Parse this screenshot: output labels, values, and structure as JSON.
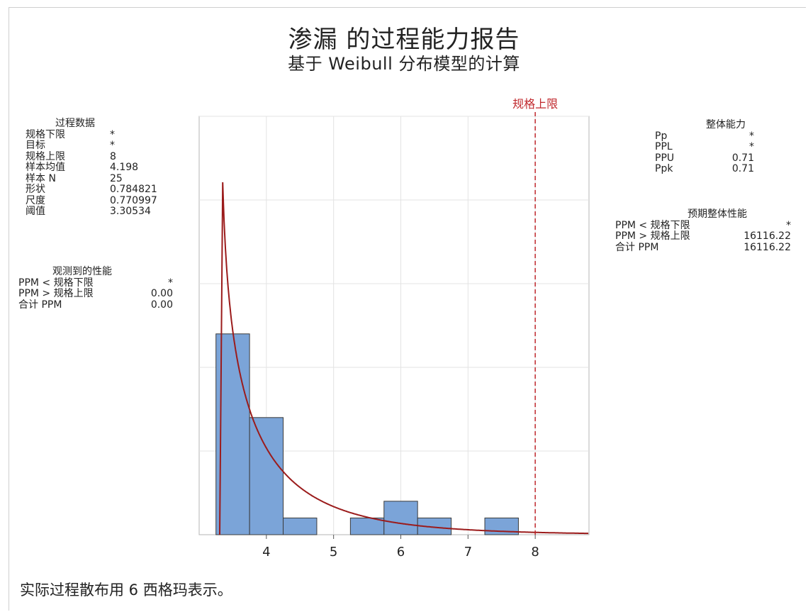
{
  "title": "渗漏 的过程能力报告",
  "subtitle": "基于 Weibull 分布模型的计算",
  "process_data": {
    "header": "过程数据",
    "rows": [
      {
        "label": "规格下限",
        "value": "*"
      },
      {
        "label": "目标",
        "value": "*"
      },
      {
        "label": "规格上限",
        "value": "8"
      },
      {
        "label": "样本均值",
        "value": "4.198"
      },
      {
        "label": "样本 N",
        "value": "25"
      },
      {
        "label": "形状",
        "value": "0.784821"
      },
      {
        "label": "尺度",
        "value": "0.770997"
      },
      {
        "label": "阈值",
        "value": "3.30534"
      }
    ]
  },
  "observed": {
    "header": "观测到的性能",
    "rows": [
      {
        "label": "PPM < 规格下限",
        "value": "*"
      },
      {
        "label": "PPM > 规格上限",
        "value": "0.00"
      },
      {
        "label": "合计 PPM",
        "value": "0.00"
      }
    ]
  },
  "overall_capability": {
    "header": "整体能力",
    "rows": [
      {
        "label": "Pp",
        "value": "*"
      },
      {
        "label": "PPL",
        "value": "*"
      },
      {
        "label": "PPU",
        "value": "0.71"
      },
      {
        "label": "Ppk",
        "value": "0.71"
      }
    ]
  },
  "expected_overall": {
    "header": "预期整体性能",
    "rows": [
      {
        "label": "PPM < 规格下限",
        "value": "*"
      },
      {
        "label": "PPM > 规格上限",
        "value": "16116.22"
      },
      {
        "label": "合计 PPM",
        "value": "16116.22"
      }
    ]
  },
  "footnote": "实际过程散布用 6 西格玛表示。",
  "colors": {
    "bar_fill": "#7ba4d8",
    "bar_stroke": "#3b3b3b",
    "curve": "#9b1b1b",
    "spec_line": "#c0282d",
    "grid": "#e3e3e3"
  },
  "chart_data": {
    "type": "bar",
    "subtype": "histogram-with-fitted-weibull",
    "bin_edges": [
      3.25,
      3.75,
      4.25,
      4.75,
      5.25,
      5.75,
      6.25,
      6.75,
      7.25,
      7.75
    ],
    "values": [
      12,
      7,
      1,
      0,
      1,
      2,
      1,
      0,
      1
    ],
    "x_ticks": [
      4,
      5,
      6,
      7,
      8
    ],
    "x_tick_labels": [
      "4",
      "5",
      "6",
      "7",
      "8"
    ],
    "xlim": [
      3.0,
      8.8
    ],
    "ylim": [
      0,
      25
    ],
    "y_gridlines": [
      5,
      10,
      15,
      20,
      25
    ],
    "usl": 8,
    "usl_label": "规格上限",
    "weibull": {
      "shape": 0.784821,
      "scale": 0.770997,
      "threshold": 3.30534,
      "n": 25,
      "bin_width": 0.5
    },
    "grid": true
  }
}
